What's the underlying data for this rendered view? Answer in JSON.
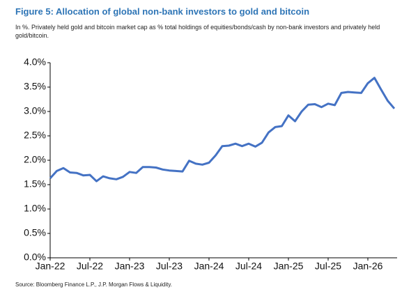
{
  "chart_data": {
    "type": "line",
    "title": "Figure 5: Allocation of global non-bank investors to gold and bitcoin",
    "subtitle": "In %. Privately held gold and bitcoin market cap as % total holdings of equities/bonds/cash by non-bank investors and privately held gold/bitcoin.",
    "source": "Source: Bloomberg Finance L.P., J.P. Morgan Flows & Liquidity.",
    "x": [
      "Jan-22",
      "Feb-22",
      "Mar-22",
      "Apr-22",
      "May-22",
      "Jun-22",
      "Jul-22",
      "Aug-22",
      "Sep-22",
      "Oct-22",
      "Nov-22",
      "Dec-22",
      "Jan-23",
      "Feb-23",
      "Mar-23",
      "Apr-23",
      "May-23",
      "Jun-23",
      "Jul-23",
      "Aug-23",
      "Sep-23",
      "Oct-23",
      "Nov-23",
      "Dec-23",
      "Jan-24",
      "Feb-24",
      "Mar-24",
      "Apr-24",
      "May-24",
      "Jun-24",
      "Jul-24",
      "Aug-24",
      "Sep-24",
      "Oct-24",
      "Nov-24",
      "Dec-24",
      "Jan-25",
      "Feb-25",
      "Mar-25",
      "Apr-25",
      "May-25",
      "Jun-25",
      "Jul-25",
      "Aug-25",
      "Sep-25",
      "Oct-25",
      "Nov-25",
      "Dec-25",
      "Jan-26",
      "Feb-26",
      "Mar-26",
      "Apr-26",
      "May-26"
    ],
    "series": [
      {
        "color": "#4472c4",
        "values": [
          1.63,
          1.78,
          1.84,
          1.75,
          1.74,
          1.69,
          1.7,
          1.57,
          1.67,
          1.63,
          1.61,
          1.66,
          1.76,
          1.74,
          1.86,
          1.86,
          1.85,
          1.81,
          1.79,
          1.78,
          1.77,
          1.99,
          1.93,
          1.91,
          1.95,
          2.1,
          2.29,
          2.3,
          2.34,
          2.29,
          2.34,
          2.28,
          2.36,
          2.57,
          2.68,
          2.7,
          2.92,
          2.8,
          3.0,
          3.14,
          3.15,
          3.09,
          3.16,
          3.13,
          3.38,
          3.4,
          3.39,
          3.38,
          3.58,
          3.69,
          3.45,
          3.22,
          3.06
        ]
      }
    ],
    "xticks": [
      "Jan-22",
      "Jul-22",
      "Jan-23",
      "Jul-23",
      "Jan-24",
      "Jul-24",
      "Jan-25",
      "Jul-25",
      "Jan-26"
    ],
    "ylim": [
      0,
      4
    ],
    "yticks": [
      {
        "value": 0,
        "label": "0.0%"
      },
      {
        "value": 0.5,
        "label": "0.5%"
      },
      {
        "value": 1,
        "label": "1.0%"
      },
      {
        "value": 1.5,
        "label": "1.5%"
      },
      {
        "value": 2,
        "label": "2.0%"
      },
      {
        "value": 2.5,
        "label": "2.5%"
      },
      {
        "value": 3,
        "label": "3.0%"
      },
      {
        "value": 3.5,
        "label": "3.5%"
      },
      {
        "value": 4,
        "label": "4.0%"
      }
    ],
    "grid": false
  }
}
